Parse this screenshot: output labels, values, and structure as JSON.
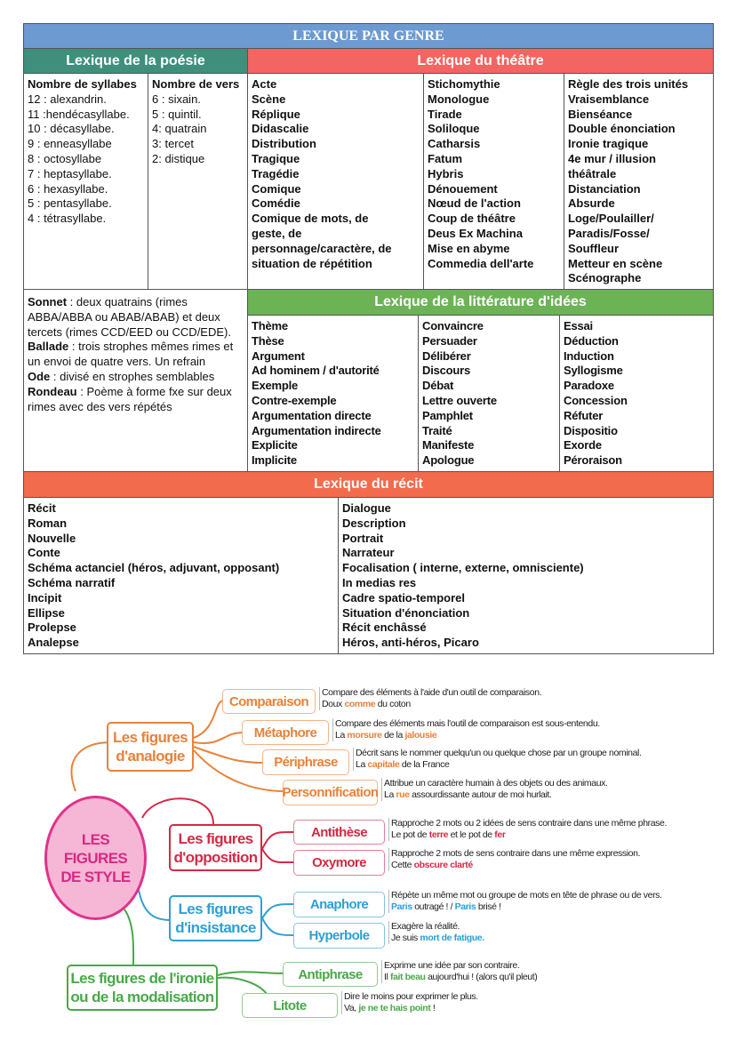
{
  "title": "LEXIQUE PAR GENRE",
  "colors": {
    "title": "#6d9ad0",
    "poesie": "#3f8f7c",
    "theatre": "#f26562",
    "idees": "#6cb356",
    "recit": "#f26b4c",
    "analogie": "#e8823a",
    "opposition": "#d42a46",
    "insistance": "#2f9fd4",
    "ironie": "#4aa84a",
    "center": "#e0338a"
  },
  "poesie": {
    "header": "Lexique de la poésie",
    "syllabes": {
      "heading": "Nombre de syllabes",
      "items": [
        "12 : alexandrin.",
        "11 :hendécasyllabe.",
        "10 : décasyllabe.",
        "9 :  enneasyllabe",
        "8 :    octosyllabe",
        "7 :  heptasyllabe.",
        "6 :    hexasyllabe.",
        "5 :  pentasyllabe.",
        "4 :    tétrasyllabe."
      ]
    },
    "vers": {
      "heading": "Nombre de vers",
      "items": [
        "6  :  sixain.",
        "5  :  quintil.",
        "4:     quatrain",
        "3:     tercet",
        "2:     distique"
      ]
    },
    "formes": [
      {
        "name": "Sonnet",
        "text": " :   deux quatrains (rimes ABBA/ABBA ou ABAB/ABAB) et deux tercets (rimes CCD/EED ou CCD/EDE)."
      },
      {
        "name": "Ballade",
        "text": " : trois strophes  mêmes rimes et un envoi de quatre vers. Un refrain"
      },
      {
        "name": "Ode",
        "text": " : divisé en strophes semblables"
      },
      {
        "name": "Rondeau",
        "text": " : Poème à forme fxe sur deux rimes avec des vers répétés"
      }
    ]
  },
  "theatre": {
    "header": "Lexique du théâtre",
    "columns": [
      [
        "Acte",
        "Scène",
        "Réplique",
        "Didascalie",
        "Distribution",
        "Tragique",
        "Tragédie",
        "Comique",
        "Comédie",
        "Comique de mots, de",
        "geste, de",
        "personnage/caractère, de",
        "situation de répétition"
      ],
      [
        "Stichomythie",
        "Monologue",
        "Tirade",
        "Soliloque",
        "Catharsis",
        "Fatum",
        "Hybris",
        "Dénouement",
        "Nœud de l'action",
        "Coup de théâtre",
        "Deus Ex Machina",
        "Mise en abyme",
        "Commedia dell'arte"
      ],
      [
        "Règle des trois unités",
        "Vraisemblance",
        "Bienséance",
        "Double énonciation",
        "Ironie tragique",
        "4e mur / illusion",
        "théâtrale",
        "Distanciation",
        "Absurde",
        "Loge/Poulailler/",
        "Paradis/Fosse/",
        "Souffleur",
        "Metteur en scène",
        "Scénographe"
      ]
    ]
  },
  "idees": {
    "header": "Lexique de la littérature d'idées",
    "columns": [
      [
        "Thème",
        "Thèse",
        "Argument",
        "Ad hominem / d'autorité",
        "Exemple",
        "Contre-exemple",
        "Argumentation directe",
        "Argumentation indirecte",
        "Explicite",
        "Implicite"
      ],
      [
        "Convaincre",
        "Persuader",
        "Délibérer",
        "Discours",
        "Débat",
        "Lettre ouverte",
        "Pamphlet",
        "Traité",
        "Manifeste",
        "Apologue"
      ],
      [
        "Essai",
        "Déduction",
        "Induction",
        "Syllogisme",
        "Paradoxe",
        "Concession",
        "Réfuter",
        "Dispositio",
        "Exorde",
        "Péroraison"
      ]
    ]
  },
  "recit": {
    "header": "Lexique du récit",
    "columns": [
      [
        "Récit",
        "Roman",
        "Nouvelle",
        "Conte",
        "Schéma actanciel (héros, adjuvant, opposant)",
        "Schéma narratif",
        "Incipit",
        "Ellipse",
        "Prolepse",
        "Analepse"
      ],
      [
        "Dialogue",
        "Description",
        "Portrait",
        "Narrateur",
        "Focalisation ( interne, externe, omnisciente)",
        "In medias res",
        "Cadre spatio-temporel",
        "Situation d'énonciation",
        "Récit enchâssé",
        "Héros, anti-héros, Picaro"
      ]
    ]
  },
  "mindmap": {
    "center": "LES FIGURES DE STYLE",
    "branches": [
      {
        "label": "Les figures d'analogie",
        "figures": [
          {
            "name": "Comparaison",
            "desc": "Compare des éléments à l'aide d'un outil de comparaison.",
            "example": [
              {
                "t": "Doux "
              },
              {
                "t": "comme",
                "hl": true
              },
              {
                "t": " du coton"
              }
            ]
          },
          {
            "name": "Métaphore",
            "desc": "Compare des éléments mais l'outil de comparaison est sous-entendu.",
            "example": [
              {
                "t": "La "
              },
              {
                "t": "morsure",
                "hl": true
              },
              {
                "t": " de la "
              },
              {
                "t": "jalousie",
                "hl": true
              }
            ]
          },
          {
            "name": "Périphrase",
            "desc": "Décrit sans le nommer quelqu'un ou quelque chose par un groupe nominal.",
            "example": [
              {
                "t": "La "
              },
              {
                "t": "capitale",
                "hl": true
              },
              {
                "t": " de la France"
              }
            ]
          },
          {
            "name": "Personnification",
            "desc": "Attribue un caractère humain à des objets ou des animaux.",
            "example": [
              {
                "t": "La "
              },
              {
                "t": "rue",
                "hl": true
              },
              {
                "t": " assourdissante autour de moi hurlait."
              }
            ]
          }
        ]
      },
      {
        "label": "Les figures d'opposition",
        "figures": [
          {
            "name": "Antithèse",
            "desc": "Rapproche 2 mots ou 2 idées de sens contraire dans une même phrase.",
            "example": [
              {
                "t": "Le pot de "
              },
              {
                "t": "terre",
                "hl": true
              },
              {
                "t": " et le pot de "
              },
              {
                "t": "fer",
                "hl": true
              }
            ]
          },
          {
            "name": "Oxymore",
            "desc": "Rapproche 2 mots de sens contraire dans une même expression.",
            "example": [
              {
                "t": "Cette "
              },
              {
                "t": "obscure clarté",
                "hl": true
              }
            ]
          }
        ]
      },
      {
        "label": "Les figures d'insistance",
        "figures": [
          {
            "name": "Anaphore",
            "desc": "Répète un même mot ou groupe de mots en tête de phrase ou de vers.",
            "example": [
              {
                "t": "Paris",
                "hl": true
              },
              {
                "t": " outragé ! / "
              },
              {
                "t": "Paris",
                "hl": true
              },
              {
                "t": " brisé !"
              }
            ]
          },
          {
            "name": "Hyperbole",
            "desc": "Exagère la réalité.",
            "example": [
              {
                "t": "Je suis "
              },
              {
                "t": "mort de fatigue.",
                "hl": true
              }
            ]
          }
        ]
      },
      {
        "label": "Les figures de l'ironie ou de la modalisation",
        "figures": [
          {
            "name": "Antiphrase",
            "desc": "Exprime une idée par son contraire.",
            "example": [
              {
                "t": "Il "
              },
              {
                "t": "fait beau",
                "hl": true
              },
              {
                "t": " aujourd'hui ! (alors qu'il pleut)"
              }
            ]
          },
          {
            "name": "Litote",
            "desc": "Dire le moins pour exprimer le plus.",
            "example": [
              {
                "t": "Va, "
              },
              {
                "t": "je ne te hais point",
                "hl": true
              },
              {
                "t": " !"
              }
            ]
          }
        ]
      }
    ]
  }
}
